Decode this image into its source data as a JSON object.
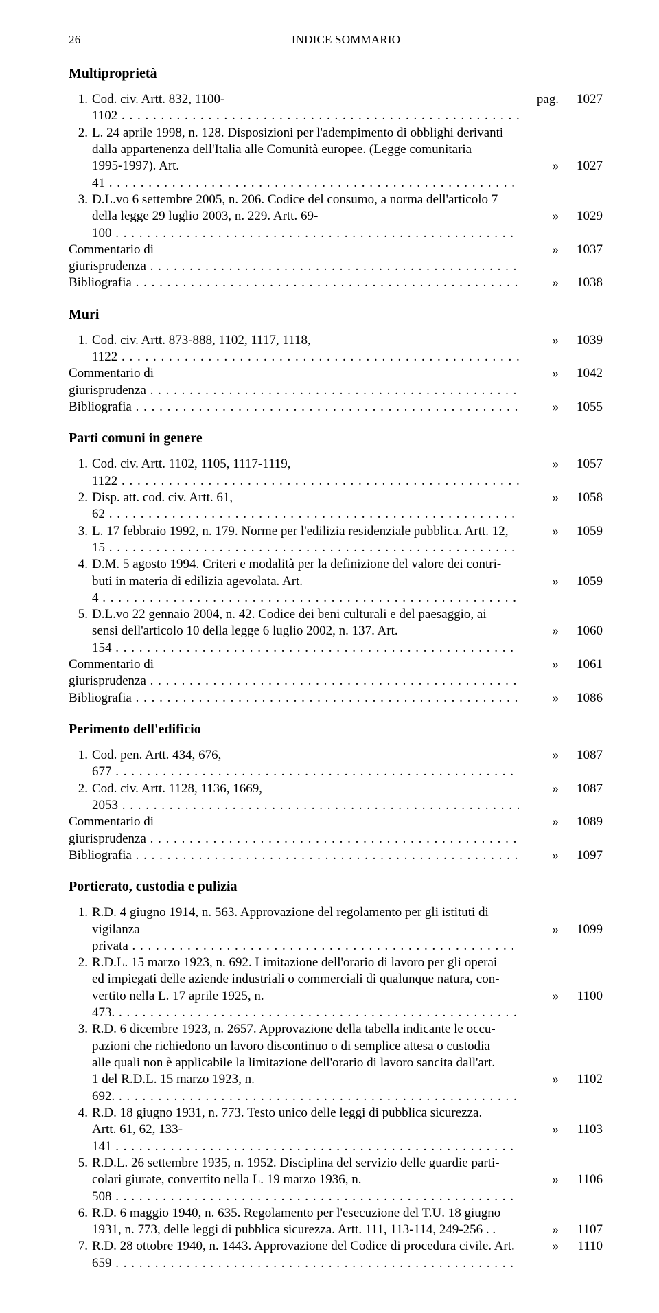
{
  "page_number": "26",
  "header_title": "INDICE SOMMARIO",
  "sym_pag": "pag.",
  "sym_raquo": "»",
  "sections": {
    "multiproprieta": {
      "title": "Multiproprietà",
      "items": [
        {
          "num": "1.",
          "text": "Cod. civ. Artt. 832, 1100-1102",
          "sym": "pag.",
          "page": "1027"
        },
        {
          "num": "2.",
          "text": "L. 24 aprile 1998, n. 128. Disposizioni per l'adempimento di obblighi derivanti dalla appartenenza dell'Italia alle Comunità europee. (Legge comunitaria 1995-1997). Art. 41",
          "sym": "»",
          "page": "1027",
          "multi": true,
          "lines": [
            "L. 24 aprile 1998, n. 128. Disposizioni per l'adempimento di obblighi derivanti",
            "dalla appartenenza dell'Italia alle Comunità europee. (Legge comunitaria",
            "1995-1997). Art. 41"
          ]
        },
        {
          "num": "3.",
          "text": "D.L.vo 6 settembre 2005, n. 206. Codice del consumo, a norma dell'articolo 7 della legge 29 luglio 2003, n. 229. Artt. 69-100",
          "sym": "»",
          "page": "1029",
          "multi": true,
          "lines": [
            "D.L.vo 6 settembre 2005, n. 206. Codice del consumo, a norma dell'articolo 7",
            "della legge 29 luglio 2003, n. 229. Artt. 69-100"
          ]
        }
      ],
      "commentario": {
        "text": "Commentario di giurisprudenza",
        "sym": "»",
        "page": "1037"
      },
      "bibliografia": {
        "text": "Bibliografia",
        "sym": "»",
        "page": "1038"
      }
    },
    "muri": {
      "title": "Muri",
      "items": [
        {
          "num": "1.",
          "text": "Cod. civ. Artt. 873-888, 1102, 1117, 1118, 1122",
          "sym": "»",
          "page": "1039"
        }
      ],
      "commentario": {
        "text": "Commentario di giurisprudenza",
        "sym": "»",
        "page": "1042"
      },
      "bibliografia": {
        "text": "Bibliografia",
        "sym": "»",
        "page": "1055"
      }
    },
    "particomuni": {
      "title": "Parti comuni in genere",
      "items": [
        {
          "num": "1.",
          "text": "Cod. civ. Artt. 1102, 1105, 1117-1119, 1122",
          "sym": "»",
          "page": "1057"
        },
        {
          "num": "2.",
          "text": "Disp. att. cod. civ. Artt. 61, 62",
          "sym": "»",
          "page": "1058"
        },
        {
          "num": "3.",
          "text": "L. 17 febbraio 1992, n. 179. Norme per l'edilizia residenziale pubblica. Artt. 12, 15",
          "sym": "»",
          "page": "1059"
        },
        {
          "num": "4.",
          "multi": true,
          "lines": [
            "D.M. 5 agosto 1994. Criteri e modalità per la definizione del valore dei contri-",
            "buti in materia di edilizia agevolata. Art. 4"
          ],
          "sym": "»",
          "page": "1059"
        },
        {
          "num": "5.",
          "multi": true,
          "lines": [
            "D.L.vo 22 gennaio 2004, n. 42. Codice dei beni culturali e del paesaggio, ai",
            "sensi dell'articolo 10 della legge 6 luglio 2002, n. 137. Art. 154"
          ],
          "sym": "»",
          "page": "1060"
        }
      ],
      "commentario": {
        "text": "Commentario di giurisprudenza",
        "sym": "»",
        "page": "1061"
      },
      "bibliografia": {
        "text": "Bibliografia",
        "sym": "»",
        "page": "1086"
      }
    },
    "perimento": {
      "title": "Perimento dell'edificio",
      "items": [
        {
          "num": "1.",
          "text": "Cod. pen. Artt. 434, 676, 677",
          "sym": "»",
          "page": "1087"
        },
        {
          "num": "2.",
          "text": "Cod. civ. Artt. 1128, 1136, 1669, 2053",
          "sym": "»",
          "page": "1087"
        }
      ],
      "commentario": {
        "text": "Commentario di giurisprudenza",
        "sym": "»",
        "page": "1089"
      },
      "bibliografia": {
        "text": "Bibliografia",
        "sym": "»",
        "page": "1097"
      }
    },
    "portierato": {
      "title": "Portierato, custodia e pulizia",
      "items": [
        {
          "num": "1.",
          "multi": true,
          "lines": [
            "R.D. 4 giugno 1914, n. 563. Approvazione del regolamento per gli istituti di",
            "vigilanza privata"
          ],
          "sym": "»",
          "page": "1099"
        },
        {
          "num": "2.",
          "multi": true,
          "lines": [
            "R.D.L. 15 marzo 1923, n. 692. Limitazione dell'orario di lavoro per gli operai",
            "ed impiegati delle aziende industriali o commerciali di qualunque natura, con-",
            "vertito nella L. 17 aprile 1925, n. 473."
          ],
          "sym": "»",
          "page": "1100"
        },
        {
          "num": "3.",
          "multi": true,
          "lines": [
            "R.D. 6 dicembre 1923, n. 2657. Approvazione della tabella indicante le occu-",
            "pazioni che richiedono un lavoro discontinuo o di semplice attesa o custodia",
            "alle quali non è applicabile la limitazione dell'orario di lavoro sancita dall'art.",
            "1 del R.D.L. 15 marzo 1923, n. 692."
          ],
          "sym": "»",
          "page": "1102"
        },
        {
          "num": "4.",
          "multi": true,
          "lines": [
            "R.D. 18 giugno 1931, n. 773. Testo unico delle leggi di pubblica sicurezza.",
            "Artt. 61, 62, 133-141"
          ],
          "sym": "»",
          "page": "1103"
        },
        {
          "num": "5.",
          "multi": true,
          "lines": [
            "R.D.L. 26 settembre 1935, n. 1952. Disciplina del servizio delle guardie parti-",
            "colari giurate, convertito nella L. 19 marzo 1936, n. 508"
          ],
          "sym": "»",
          "page": "1106"
        },
        {
          "num": "6.",
          "multi": true,
          "lines": [
            "R.D. 6 maggio 1940, n. 635. Regolamento per l'esecuzione del T.U. 18 giugno",
            "1931, n. 773, delle leggi di pubblica sicurezza. Artt. 111, 113-114, 249-256 . ."
          ],
          "sym": "»",
          "page": "1107"
        },
        {
          "num": "7.",
          "text": "R.D. 28 ottobre 1940, n. 1443. Approvazione del Codice di procedura civile. Art. 659",
          "sym": "»",
          "page": "1110"
        }
      ]
    }
  }
}
